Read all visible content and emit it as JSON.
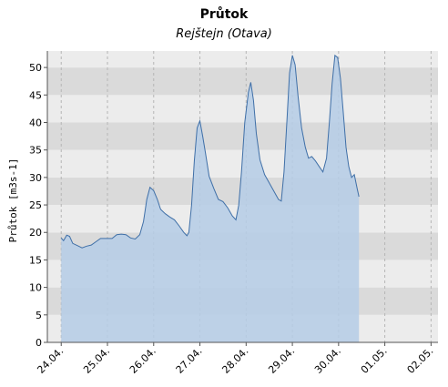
{
  "chart_data": {
    "type": "area",
    "title": "Průtok",
    "subtitle": "Rejštejn (Otava)",
    "ylabel": "Průtok [m3s-1]",
    "xlabel": "",
    "ylim": [
      0,
      53
    ],
    "yticks": [
      0,
      5,
      10,
      15,
      20,
      25,
      30,
      35,
      40,
      45,
      50
    ],
    "xlim": [
      -0.3,
      8.15
    ],
    "xticks": [
      {
        "pos": 0,
        "label": "24.04."
      },
      {
        "pos": 1,
        "label": "25.04."
      },
      {
        "pos": 2,
        "label": "26.04."
      },
      {
        "pos": 3,
        "label": "27.04."
      },
      {
        "pos": 4,
        "label": "28.04."
      },
      {
        "pos": 5,
        "label": "29.04."
      },
      {
        "pos": 6,
        "label": "30.04."
      },
      {
        "pos": 7,
        "label": "01.05."
      },
      {
        "pos": 8,
        "label": "02.05."
      }
    ],
    "grid": true,
    "series": [
      {
        "values": [
          [
            0.0,
            19.0
          ],
          [
            0.05,
            18.5
          ],
          [
            0.12,
            19.5
          ],
          [
            0.18,
            19.3
          ],
          [
            0.25,
            18.0
          ],
          [
            0.35,
            17.6
          ],
          [
            0.45,
            17.2
          ],
          [
            0.55,
            17.5
          ],
          [
            0.65,
            17.7
          ],
          [
            0.75,
            18.3
          ],
          [
            0.85,
            18.9
          ],
          [
            1.0,
            18.9
          ],
          [
            1.1,
            18.9
          ],
          [
            1.2,
            19.6
          ],
          [
            1.3,
            19.7
          ],
          [
            1.4,
            19.6
          ],
          [
            1.5,
            19.0
          ],
          [
            1.6,
            18.8
          ],
          [
            1.7,
            19.6
          ],
          [
            1.78,
            22.0
          ],
          [
            1.85,
            26.0
          ],
          [
            1.92,
            28.2
          ],
          [
            2.0,
            27.6
          ],
          [
            2.08,
            26.0
          ],
          [
            2.15,
            24.2
          ],
          [
            2.25,
            23.4
          ],
          [
            2.35,
            22.8
          ],
          [
            2.45,
            22.3
          ],
          [
            2.55,
            21.2
          ],
          [
            2.65,
            20.0
          ],
          [
            2.72,
            19.4
          ],
          [
            2.76,
            20.0
          ],
          [
            2.82,
            25.0
          ],
          [
            2.88,
            33.0
          ],
          [
            2.94,
            39.0
          ],
          [
            3.0,
            40.3
          ],
          [
            3.06,
            37.5
          ],
          [
            3.12,
            34.5
          ],
          [
            3.2,
            30.2
          ],
          [
            3.3,
            28.0
          ],
          [
            3.4,
            26.0
          ],
          [
            3.5,
            25.6
          ],
          [
            3.6,
            24.5
          ],
          [
            3.7,
            23.0
          ],
          [
            3.78,
            22.3
          ],
          [
            3.84,
            25.0
          ],
          [
            3.9,
            31.0
          ],
          [
            3.97,
            40.0
          ],
          [
            4.05,
            45.5
          ],
          [
            4.1,
            47.3
          ],
          [
            4.16,
            44.0
          ],
          [
            4.22,
            38.0
          ],
          [
            4.3,
            33.2
          ],
          [
            4.4,
            30.5
          ],
          [
            4.5,
            29.0
          ],
          [
            4.6,
            27.5
          ],
          [
            4.7,
            26.0
          ],
          [
            4.76,
            25.7
          ],
          [
            4.82,
            31.0
          ],
          [
            4.88,
            40.0
          ],
          [
            4.94,
            49.0
          ],
          [
            5.0,
            52.2
          ],
          [
            5.06,
            50.5
          ],
          [
            5.12,
            45.0
          ],
          [
            5.2,
            39.0
          ],
          [
            5.28,
            35.5
          ],
          [
            5.35,
            33.5
          ],
          [
            5.42,
            33.8
          ],
          [
            5.5,
            33.0
          ],
          [
            5.58,
            32.0
          ],
          [
            5.66,
            31.0
          ],
          [
            5.74,
            33.5
          ],
          [
            5.8,
            40.0
          ],
          [
            5.86,
            47.0
          ],
          [
            5.92,
            52.2
          ],
          [
            5.98,
            51.8
          ],
          [
            6.04,
            48.0
          ],
          [
            6.1,
            42.0
          ],
          [
            6.16,
            35.5
          ],
          [
            6.22,
            32.0
          ],
          [
            6.28,
            30.0
          ],
          [
            6.34,
            30.5
          ],
          [
            6.4,
            28.0
          ],
          [
            6.44,
            26.5
          ]
        ]
      }
    ],
    "colors": {
      "band_light": "#ececec",
      "band_dark": "#dadada",
      "area_fill": "#b5cde6",
      "line": "#3f6fa7",
      "vgrid": "#b5b5b5"
    }
  }
}
